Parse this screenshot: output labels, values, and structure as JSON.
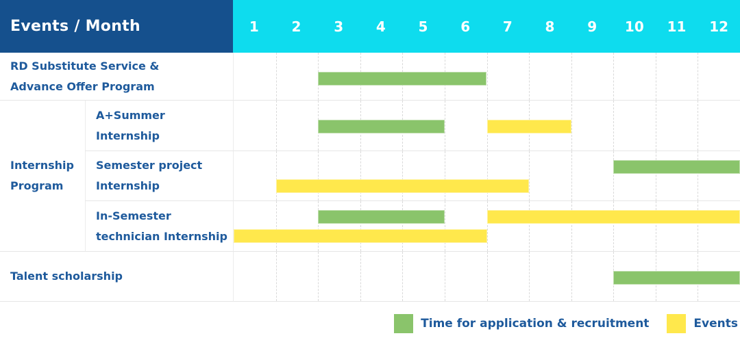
{
  "header": {
    "title": "Events / Month"
  },
  "colors": {
    "header_bg": "#15508d",
    "month_header_bg": "#0edcee",
    "label_text": "#1e5a9c",
    "application_green": "#8ac46b",
    "events_yellow": "#ffe84c",
    "grid_line": "#e6e6e6",
    "column_dash": "#d9d9d9"
  },
  "chart_data": {
    "type": "bar",
    "variant": "gantt-schedule",
    "title": "Events / Month",
    "x": {
      "label": "Month",
      "ticks": [
        "1",
        "2",
        "3",
        "4",
        "5",
        "6",
        "7",
        "8",
        "9",
        "10",
        "11",
        "12"
      ],
      "range": [
        1,
        12
      ]
    },
    "grid": "dashed-vertical-month-lines",
    "series": [
      {
        "name": "Time for application & recruitment",
        "color": "#8ac46b"
      },
      {
        "name": "Events",
        "color": "#ffe84c"
      }
    ],
    "row_group": {
      "label": "Internship Program",
      "label_lines": [
        "Internship",
        "Program"
      ],
      "row_indexes": [
        1,
        2,
        3
      ]
    },
    "rows": [
      {
        "label": "RD Substitute Service & Advance Offer Program",
        "label_lines": [
          "RD Substitute Service &",
          "Advance Offer Program"
        ],
        "group": "",
        "lanes": 1,
        "bars": [
          {
            "series": "Time for application & recruitment",
            "start_month": 3,
            "end_month": 6,
            "lane": 0
          }
        ]
      },
      {
        "label": "A+Summer Internship",
        "label_lines": [
          "A+Summer",
          "Internship"
        ],
        "group": "Internship Program",
        "lanes": 1,
        "bars": [
          {
            "series": "Time for application & recruitment",
            "start_month": 3,
            "end_month": 5,
            "lane": 0
          },
          {
            "series": "Events",
            "start_month": 7,
            "end_month": 8,
            "lane": 0
          }
        ]
      },
      {
        "label": "Semester project Internship",
        "label_lines": [
          "Semester project",
          "Internship"
        ],
        "group": "Internship Program",
        "lanes": 2,
        "bars": [
          {
            "series": "Time for application & recruitment",
            "start_month": 10,
            "end_month": 12,
            "lane": 0
          },
          {
            "series": "Events",
            "start_month": 2,
            "end_month": 7,
            "lane": 1
          }
        ]
      },
      {
        "label": "In-Semester technician Internship",
        "label_lines": [
          "In-Semester",
          "technician Internship"
        ],
        "group": "Internship Program",
        "lanes": 2,
        "bars": [
          {
            "series": "Time for application & recruitment",
            "start_month": 3,
            "end_month": 5,
            "lane": 0
          },
          {
            "series": "Events",
            "start_month": 7,
            "end_month": 12,
            "lane": 0
          },
          {
            "series": "Events",
            "start_month": 1,
            "end_month": 6,
            "lane": 1
          }
        ]
      },
      {
        "label": "Talent scholarship",
        "label_lines": [
          "Talent scholarship"
        ],
        "group": "",
        "lanes": 1,
        "bars": [
          {
            "series": "Time for application & recruitment",
            "start_month": 10,
            "end_month": 12,
            "lane": 0
          }
        ]
      }
    ],
    "legend": [
      {
        "label": "Time for application & recruitment",
        "color": "#8ac46b"
      },
      {
        "label": "Events",
        "color": "#ffe84c"
      }
    ],
    "legend_position": "bottom-right"
  }
}
